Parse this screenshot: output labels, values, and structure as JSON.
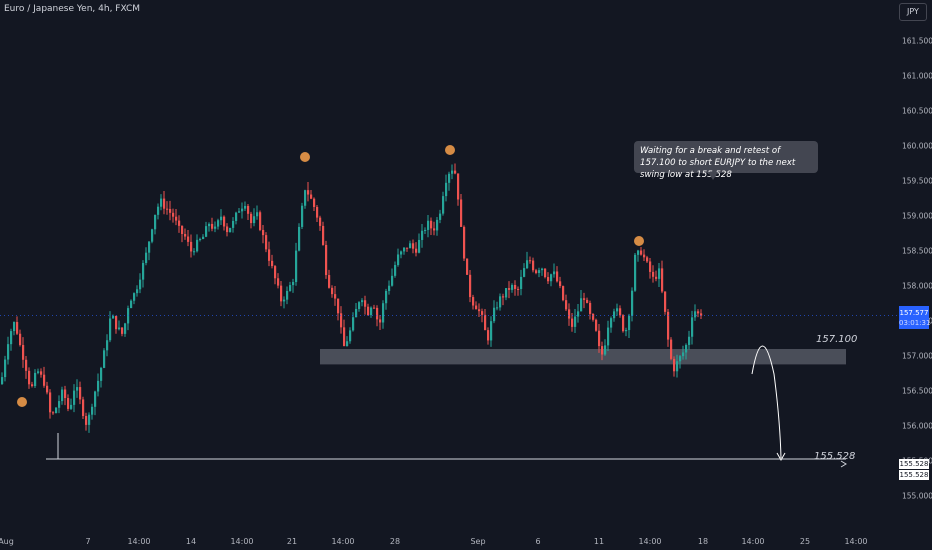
{
  "header": {
    "title": "Euro / Japanese Yen, 4h, FXCM",
    "currency_button": "JPY"
  },
  "annotation": {
    "text": "Waiting for a break and retest of 157.100 to short EURJPY to the next swing low at 155.528"
  },
  "levels": {
    "resistance_label": "157.100",
    "target_label": "155.528"
  },
  "price_tag": {
    "price": "157.577",
    "countdown": "03:01:31"
  },
  "level_tags": [
    "155.528",
    "155.528"
  ],
  "colors": {
    "up": "#26a69a",
    "down": "#ef5350",
    "background": "#131722",
    "zone": "#787b86",
    "swing_marker": "#d68c45"
  },
  "chart_data": {
    "type": "candlestick",
    "title": "Euro / Japanese Yen, 4h, FXCM",
    "ylim": [
      154.8,
      161.8
    ],
    "y_ticks": [
      "161.500",
      "161.000",
      "160.500",
      "160.000",
      "159.500",
      "159.000",
      "158.500",
      "158.000",
      "157.500",
      "157.000",
      "156.500",
      "156.000",
      "155.500",
      "155.000"
    ],
    "x_ticks": [
      "Aug",
      "7",
      "14:00",
      "14",
      "14:00",
      "21",
      "14:00",
      "28",
      "Sep",
      "6",
      "11",
      "14:00",
      "18",
      "14:00",
      "25",
      "14:00"
    ],
    "close_path": [
      [
        0,
        156.6
      ],
      [
        3,
        156.9
      ],
      [
        8,
        157.3
      ],
      [
        14,
        157.5
      ],
      [
        18,
        157.2
      ],
      [
        24,
        156.9
      ],
      [
        30,
        156.5
      ],
      [
        36,
        156.8
      ],
      [
        44,
        156.6
      ],
      [
        50,
        156.1
      ],
      [
        56,
        156.3
      ],
      [
        62,
        156.5
      ],
      [
        68,
        156.2
      ],
      [
        74,
        156.6
      ],
      [
        80,
        156.3
      ],
      [
        86,
        156.0
      ],
      [
        92,
        156.4
      ],
      [
        98,
        156.7
      ],
      [
        104,
        157.1
      ],
      [
        110,
        157.6
      ],
      [
        116,
        157.4
      ],
      [
        122,
        157.3
      ],
      [
        128,
        157.8
      ],
      [
        134,
        157.9
      ],
      [
        140,
        158.2
      ],
      [
        146,
        158.5
      ],
      [
        150,
        158.8
      ],
      [
        155,
        159.1
      ],
      [
        160,
        159.2
      ],
      [
        166,
        159.1
      ],
      [
        172,
        159.0
      ],
      [
        178,
        158.8
      ],
      [
        184,
        158.7
      ],
      [
        190,
        158.5
      ],
      [
        196,
        158.6
      ],
      [
        202,
        158.7
      ],
      [
        208,
        158.9
      ],
      [
        214,
        158.8
      ],
      [
        220,
        159.0
      ],
      [
        226,
        158.8
      ],
      [
        232,
        158.9
      ],
      [
        238,
        159.1
      ],
      [
        244,
        159.2
      ],
      [
        250,
        158.9
      ],
      [
        256,
        159.0
      ],
      [
        262,
        158.7
      ],
      [
        268,
        158.4
      ],
      [
        274,
        158.1
      ],
      [
        280,
        157.8
      ],
      [
        286,
        157.9
      ],
      [
        292,
        158.1
      ],
      [
        296,
        158.6
      ],
      [
        300,
        159.0
      ],
      [
        304,
        159.4
      ],
      [
        308,
        159.3
      ],
      [
        314,
        159.1
      ],
      [
        320,
        158.8
      ],
      [
        326,
        158.1
      ],
      [
        332,
        157.9
      ],
      [
        338,
        157.6
      ],
      [
        342,
        157.1
      ],
      [
        348,
        157.3
      ],
      [
        354,
        157.6
      ],
      [
        360,
        157.9
      ],
      [
        366,
        157.6
      ],
      [
        372,
        157.8
      ],
      [
        378,
        157.4
      ],
      [
        384,
        157.9
      ],
      [
        390,
        158.1
      ],
      [
        396,
        158.4
      ],
      [
        402,
        158.5
      ],
      [
        408,
        158.6
      ],
      [
        414,
        158.5
      ],
      [
        420,
        158.7
      ],
      [
        426,
        158.9
      ],
      [
        432,
        158.8
      ],
      [
        438,
        159.0
      ],
      [
        444,
        159.5
      ],
      [
        450,
        159.7
      ],
      [
        455,
        159.6
      ],
      [
        460,
        158.8
      ],
      [
        466,
        158.1
      ],
      [
        470,
        157.8
      ],
      [
        476,
        157.7
      ],
      [
        482,
        157.5
      ],
      [
        486,
        157.2
      ],
      [
        492,
        157.6
      ],
      [
        498,
        157.8
      ],
      [
        504,
        157.9
      ],
      [
        510,
        158.0
      ],
      [
        516,
        157.9
      ],
      [
        522,
        158.2
      ],
      [
        528,
        158.4
      ],
      [
        534,
        158.2
      ],
      [
        540,
        158.3
      ],
      [
        546,
        158.1
      ],
      [
        552,
        158.2
      ],
      [
        558,
        158.0
      ],
      [
        564,
        157.7
      ],
      [
        570,
        157.4
      ],
      [
        576,
        157.6
      ],
      [
        582,
        157.9
      ],
      [
        588,
        157.6
      ],
      [
        594,
        157.4
      ],
      [
        598,
        157.1
      ],
      [
        602,
        157.0
      ],
      [
        606,
        157.4
      ],
      [
        612,
        157.7
      ],
      [
        618,
        157.6
      ],
      [
        624,
        157.3
      ],
      [
        630,
        157.8
      ],
      [
        634,
        158.4
      ],
      [
        640,
        158.5
      ],
      [
        646,
        158.3
      ],
      [
        652,
        158.1
      ],
      [
        658,
        158.2
      ],
      [
        664,
        157.6
      ],
      [
        668,
        157.1
      ],
      [
        672,
        156.8
      ],
      [
        676,
        156.9
      ],
      [
        680,
        157.0
      ],
      [
        684,
        157.1
      ],
      [
        688,
        157.3
      ],
      [
        692,
        157.7
      ],
      [
        696,
        157.6
      ],
      [
        700,
        157.577
      ]
    ],
    "swing_high_markers": [
      156.3,
      159.8,
      159.9,
      158.6
    ],
    "resistance_zone": {
      "label": "157.100",
      "top": 157.1,
      "bottom": 156.88
    },
    "target_level": {
      "label": "155.528",
      "value": 155.528
    },
    "last_price": 157.577
  }
}
